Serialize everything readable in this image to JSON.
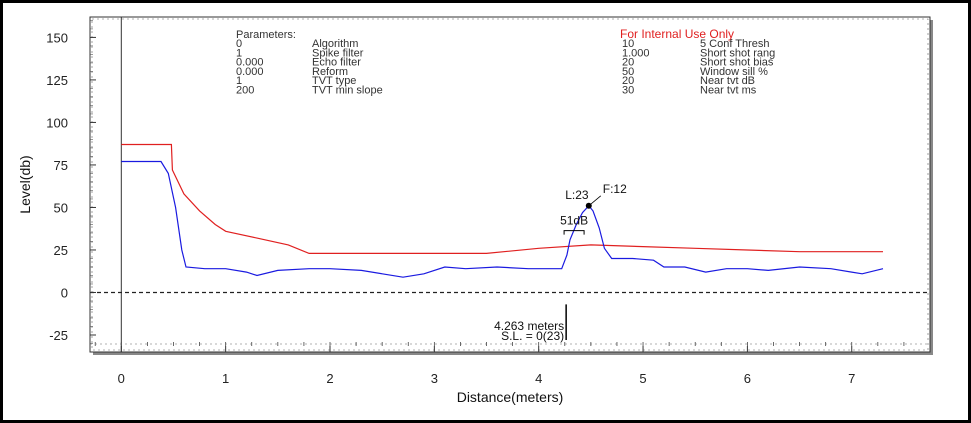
{
  "chart_data": {
    "type": "line",
    "xlabel": "Distance(meters)",
    "ylabel": "Level(db)",
    "xlim": [
      -0.3,
      7.75
    ],
    "ylim": [
      -35,
      162
    ],
    "x_ticks": [
      0,
      1,
      2,
      3,
      4,
      5,
      6,
      7
    ],
    "y_ticks": [
      -25,
      0,
      25,
      50,
      75,
      100,
      125,
      150
    ],
    "grid": false,
    "zero_line": "dashed",
    "series": [
      {
        "name": "",
        "color": "#e02020",
        "points": [
          [
            0,
            87
          ],
          [
            0.48,
            87
          ],
          [
            0.49,
            72
          ],
          [
            0.6,
            58
          ],
          [
            0.75,
            48
          ],
          [
            0.9,
            40
          ],
          [
            1.0,
            36
          ],
          [
            1.3,
            32
          ],
          [
            1.6,
            28
          ],
          [
            1.8,
            23
          ],
          [
            2.5,
            23
          ],
          [
            3.5,
            23
          ],
          [
            4.0,
            26
          ],
          [
            4.5,
            28
          ],
          [
            5.0,
            27
          ],
          [
            5.5,
            26
          ],
          [
            6.0,
            25
          ],
          [
            6.5,
            24
          ],
          [
            7.0,
            24
          ],
          [
            7.3,
            24
          ]
        ]
      },
      {
        "name": "",
        "color": "#1a1ae0",
        "points": [
          [
            0,
            77
          ],
          [
            0.38,
            77
          ],
          [
            0.45,
            70
          ],
          [
            0.52,
            50
          ],
          [
            0.58,
            25
          ],
          [
            0.62,
            15
          ],
          [
            0.8,
            14
          ],
          [
            1.0,
            14
          ],
          [
            1.2,
            12
          ],
          [
            1.3,
            10
          ],
          [
            1.5,
            13
          ],
          [
            1.8,
            14
          ],
          [
            2.0,
            14
          ],
          [
            2.3,
            13
          ],
          [
            2.5,
            11
          ],
          [
            2.7,
            9
          ],
          [
            2.9,
            11
          ],
          [
            3.1,
            15
          ],
          [
            3.3,
            14
          ],
          [
            3.6,
            15
          ],
          [
            3.9,
            14
          ],
          [
            4.1,
            14
          ],
          [
            4.22,
            14
          ],
          [
            4.27,
            22
          ],
          [
            4.3,
            31
          ],
          [
            4.36,
            40
          ],
          [
            4.42,
            47
          ],
          [
            4.48,
            51
          ],
          [
            4.52,
            48
          ],
          [
            4.58,
            38
          ],
          [
            4.63,
            26
          ],
          [
            4.7,
            20
          ],
          [
            4.9,
            20
          ],
          [
            5.1,
            19
          ],
          [
            5.2,
            15
          ],
          [
            5.4,
            15
          ],
          [
            5.6,
            12
          ],
          [
            5.8,
            14
          ],
          [
            6.0,
            14
          ],
          [
            6.2,
            13
          ],
          [
            6.5,
            15
          ],
          [
            6.8,
            14
          ],
          [
            7.0,
            12
          ],
          [
            7.1,
            11
          ],
          [
            7.3,
            14
          ]
        ]
      }
    ],
    "annotations": {
      "peak_label": "L:23",
      "peak_x": 4.27,
      "peak_y": 48,
      "fill_label": "F:12",
      "fill_x": 4.48,
      "fill_y": 51,
      "db_label": "51dB",
      "db_x": 4.32,
      "db_y": 34,
      "marker_x": 4.263,
      "marker_text_1": "4.263 meters",
      "marker_text_2": "S.L. = 0(23)"
    },
    "parameters_panel": {
      "header": "Parameters:",
      "left": [
        [
          "0",
          "Algorithm"
        ],
        [
          "1",
          "Spike filter"
        ],
        [
          "0.000",
          "Echo filter"
        ],
        [
          "0.000",
          "Reform"
        ],
        [
          "1",
          "TVT type"
        ],
        [
          "200",
          "TVT min slope"
        ]
      ],
      "right_header": "For Internal Use Only",
      "right": [
        [
          "10",
          "5 Conf Thresh"
        ],
        [
          "1.000",
          "Short shot rang"
        ],
        [
          "20",
          "Short shot bias"
        ],
        [
          "50",
          "Window sill %"
        ],
        [
          "20",
          "Near tvt dB"
        ],
        [
          "30",
          "Near tvt ms"
        ]
      ]
    }
  },
  "colors": {
    "tvt_curve": "#e02020",
    "echo_profile": "#1a1ae0",
    "internal_text": "#e02020"
  }
}
